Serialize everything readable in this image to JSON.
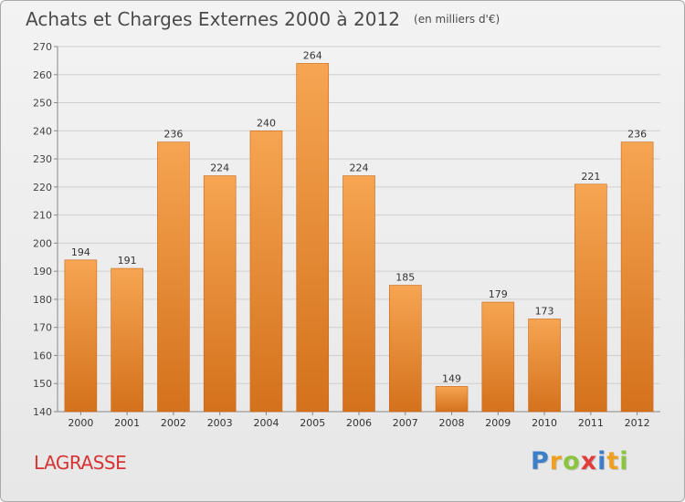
{
  "chart_data": {
    "type": "bar",
    "title": "Achats et Charges Externes 2000 à 2012",
    "subtitle": "(en milliers d'€)",
    "categories": [
      "2000",
      "2001",
      "2002",
      "2003",
      "2004",
      "2005",
      "2006",
      "2007",
      "2008",
      "2009",
      "2010",
      "2011",
      "2012"
    ],
    "values": [
      194,
      191,
      236,
      224,
      240,
      264,
      224,
      185,
      149,
      179,
      173,
      221,
      236
    ],
    "ylim": [
      140,
      270
    ],
    "yticks": [
      140,
      150,
      160,
      170,
      180,
      190,
      200,
      210,
      220,
      230,
      240,
      250,
      260,
      270
    ],
    "grid": true,
    "bar_color_top": "#f6a552",
    "bar_color_bottom": "#d4711c"
  },
  "footer": {
    "commune": "LAGRASSE",
    "logo_letters": [
      "P",
      "r",
      "o",
      "x",
      "i",
      "t",
      "i"
    ],
    "logo_colors": [
      "#3d7ec9",
      "#f0a020",
      "#8bc53f",
      "#e03d3d",
      "#3d7ec9",
      "#f0a020",
      "#8bc53f"
    ]
  }
}
